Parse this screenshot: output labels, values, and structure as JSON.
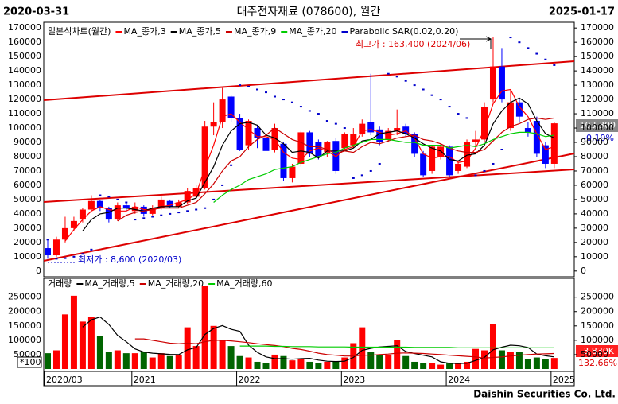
{
  "header": {
    "start": "2020-03-31",
    "title": "대주전자재료 (078600), 월간",
    "end": "2025-01-17"
  },
  "footer": "Daishin Securities Co. Ltd.",
  "chart_data": [
    {
      "type": "candlestick",
      "legend_title": "일본식차트(월간)",
      "up_color": "#ff0000",
      "down_color": "#0000ff",
      "open": [
        16000,
        11000,
        22000,
        30000,
        36000,
        43000,
        49000,
        44000,
        36000,
        46000,
        42000,
        45000,
        40000,
        44000,
        49000,
        45000,
        48000,
        52000,
        58000,
        101000,
        104000,
        122000,
        107000,
        88000,
        100000,
        93000,
        85000,
        89000,
        65000,
        75000,
        97000,
        90000,
        83000,
        91000,
        86000,
        88000,
        96000,
        104000,
        99000,
        92000,
        98000,
        101000,
        96000,
        82000,
        70000,
        80000,
        87000,
        70000,
        73000,
        90000,
        92000,
        120000,
        143000,
        100000,
        118000,
        100000,
        105000,
        88000,
        75000
      ],
      "high": [
        22000,
        24000,
        38000,
        38000,
        44000,
        53000,
        50000,
        45000,
        48000,
        48000,
        48000,
        46000,
        46000,
        52000,
        50000,
        50000,
        58000,
        60000,
        105000,
        118000,
        128000,
        123000,
        110000,
        106000,
        102000,
        96000,
        103000,
        90000,
        75000,
        98000,
        98000,
        92000,
        91000,
        93000,
        97000,
        100000,
        106000,
        138000,
        101000,
        100000,
        113000,
        103000,
        97000,
        84000,
        88000,
        89000,
        88000,
        77000,
        92000,
        98000,
        118000,
        163400,
        156000,
        127000,
        120000,
        104000,
        108000,
        90000,
        104000
      ],
      "low": [
        8600,
        10000,
        20000,
        28000,
        34000,
        42000,
        42000,
        34000,
        35000,
        42000,
        40000,
        38000,
        39000,
        43000,
        44000,
        44000,
        47000,
        51000,
        57000,
        95000,
        100000,
        104000,
        84000,
        85000,
        86000,
        80000,
        83000,
        63000,
        62000,
        73000,
        80000,
        78000,
        80000,
        68000,
        84000,
        86000,
        94000,
        95000,
        88000,
        90000,
        95000,
        94000,
        80000,
        66000,
        68000,
        78000,
        66000,
        68000,
        72000,
        86000,
        90000,
        118000,
        118000,
        98000,
        104000,
        94000,
        80000,
        72000,
        72000
      ],
      "close": [
        11000,
        22000,
        30000,
        35000,
        43000,
        49000,
        44000,
        36000,
        46000,
        44000,
        45000,
        40000,
        44000,
        50000,
        45000,
        48000,
        56000,
        58000,
        101000,
        104000,
        120000,
        107000,
        85000,
        105000,
        93000,
        84000,
        100000,
        65000,
        73000,
        97000,
        82000,
        80000,
        90000,
        70000,
        96000,
        96000,
        103000,
        97000,
        90000,
        98000,
        100000,
        96000,
        82000,
        67000,
        87000,
        87000,
        67000,
        75000,
        90000,
        92000,
        115000,
        143000,
        120000,
        118000,
        108000,
        97000,
        82000,
        75000,
        103300
      ],
      "series": [
        {
          "name": "MA_종가,3",
          "color": "#ff0000",
          "values": [
            null,
            null,
            21000,
            29000,
            36000,
            42000,
            45000,
            43000,
            42000,
            42000,
            45000,
            43000,
            43000,
            45000,
            46000,
            48000,
            50000,
            54000,
            72000,
            88000,
            108000,
            110000,
            104000,
            99000,
            94000,
            94000,
            92000,
            83000,
            79000,
            78000,
            84000,
            86000,
            84000,
            80000,
            85000,
            87000,
            98000,
            99000,
            97000,
            95000,
            96000,
            98000,
            93000,
            82000,
            79000,
            80000,
            80000,
            76000,
            77000,
            86000,
            99000,
            117000,
            126000,
            127000,
            115000,
            108000,
            96000,
            85000,
            87000
          ]
        },
        {
          "name": "MA_종가,5",
          "color": "#000000",
          "values": [
            null,
            null,
            null,
            null,
            28000,
            36000,
            40000,
            41000,
            44000,
            44000,
            43000,
            42000,
            44000,
            45000,
            45000,
            45000,
            49000,
            51000,
            62000,
            73000,
            88000,
            98000,
            103000,
            104000,
            102000,
            95000,
            93000,
            89000,
            83000,
            84000,
            83000,
            79000,
            84000,
            84000,
            84000,
            86000,
            91000,
            92000,
            96000,
            97000,
            98000,
            96000,
            93000,
            89000,
            86000,
            84000,
            78000,
            77000,
            81000,
            82000,
            88000,
            103000,
            112000,
            118000,
            121000,
            117000,
            105000,
            96000,
            93000
          ]
        },
        {
          "name": "MA_종가,9",
          "color": "#cc0000",
          "values": [
            null,
            null,
            null,
            null,
            null,
            null,
            null,
            null,
            35000,
            39000,
            41000,
            42000,
            43000,
            44000,
            44000,
            44000,
            46000,
            48000,
            54000,
            61000,
            70000,
            77000,
            80000,
            87000,
            92000,
            95000,
            100000,
            96000,
            92000,
            90000,
            87000,
            87000,
            85000,
            82000,
            84000,
            83000,
            87000,
            90000,
            89000,
            91000,
            93000,
            94000,
            95000,
            92000,
            91000,
            89000,
            86000,
            84000,
            83000,
            83000,
            85000,
            91000,
            97000,
            101000,
            103000,
            106000,
            107000,
            106000,
            107000
          ]
        },
        {
          "name": "MA_종가,20",
          "color": "#00cc00",
          "values": [
            null,
            null,
            null,
            null,
            null,
            null,
            null,
            null,
            null,
            null,
            null,
            null,
            null,
            null,
            null,
            null,
            null,
            null,
            null,
            48000,
            53000,
            57000,
            60000,
            64000,
            66000,
            68000,
            71000,
            72000,
            73000,
            76000,
            78000,
            80000,
            82000,
            83000,
            86000,
            88000,
            90000,
            92000,
            92000,
            92000,
            91000,
            90000,
            90000,
            88000,
            88000,
            88000,
            86000,
            87000,
            88000,
            87000,
            89000,
            92000,
            94000,
            96000,
            97000,
            97000,
            96000,
            94000,
            95000
          ]
        },
        {
          "name": "Parabolic SAR(0.02,0.20)",
          "color": "#0000cc",
          "type": "dots",
          "values": [
            22000,
            8600,
            9000,
            10000,
            12000,
            15000,
            53000,
            52000,
            50000,
            48000,
            36000,
            37000,
            38000,
            39000,
            40000,
            41000,
            42000,
            43000,
            44000,
            50000,
            60000,
            74000,
            130000,
            129000,
            127000,
            125000,
            122000,
            120000,
            118000,
            115000,
            112000,
            110000,
            105000,
            103000,
            100000,
            65000,
            67000,
            70000,
            75000,
            138000,
            136000,
            133000,
            130000,
            127000,
            123000,
            120000,
            115000,
            110000,
            107000,
            67000,
            70000,
            75000,
            85000,
            163400,
            160000,
            156000,
            152000,
            148000,
            144000
          ]
        }
      ],
      "ylim": [
        -4000,
        174000
      ],
      "yticks": [
        0,
        10000,
        20000,
        30000,
        40000,
        50000,
        60000,
        70000,
        80000,
        90000,
        100000,
        110000,
        120000,
        130000,
        140000,
        150000,
        160000,
        170000
      ],
      "annotations": [
        "최고가 : 163,400 (2024/06)",
        "최저가 : 8,600 (2020/03)"
      ],
      "last_price": "103,300",
      "change": "-0.19%"
    },
    {
      "type": "bar",
      "legend_title": "거래량",
      "up_color": "#ff0000",
      "down_color": "#006400",
      "categories": [
        "2020/03",
        null,
        null,
        null,
        null,
        null,
        null,
        null,
        null,
        null,
        "2021",
        null,
        null,
        null,
        null,
        null,
        null,
        null,
        null,
        null,
        null,
        null,
        "2022",
        null,
        null,
        null,
        null,
        null,
        null,
        null,
        null,
        null,
        null,
        null,
        "2023",
        null,
        null,
        null,
        null,
        null,
        null,
        null,
        null,
        null,
        null,
        null,
        "2024",
        null,
        null,
        null,
        null,
        null,
        null,
        null,
        null,
        null,
        null,
        null,
        "2025"
      ],
      "values": [
        55000,
        65000,
        190000,
        255000,
        165000,
        180000,
        115000,
        60000,
        65000,
        55000,
        55000,
        60000,
        40000,
        55000,
        45000,
        50000,
        145000,
        80000,
        288000,
        150000,
        100000,
        80000,
        45000,
        40000,
        25000,
        20000,
        50000,
        45000,
        30000,
        35000,
        25000,
        20000,
        25000,
        25000,
        40000,
        90000,
        145000,
        60000,
        50000,
        50000,
        100000,
        45000,
        25000,
        20000,
        20000,
        15000,
        20000,
        20000,
        25000,
        70000,
        65000,
        155000,
        65000,
        60000,
        60000,
        35000,
        40000,
        35000,
        38300
      ],
      "series": [
        {
          "name": "MA_거래량,5",
          "color": "#000000",
          "values": [
            null,
            null,
            null,
            null,
            146000,
            171000,
            181000,
            155000,
            117000,
            95000,
            70000,
            59000,
            55000,
            53000,
            51000,
            50000,
            67000,
            75000,
            120000,
            141000,
            151000,
            138000,
            131000,
            83000,
            58000,
            42000,
            36000,
            36000,
            34000,
            36000,
            37000,
            31000,
            27000,
            26000,
            27000,
            40000,
            65000,
            72000,
            77000,
            79000,
            81000,
            61000,
            54000,
            48000,
            42000,
            25000,
            20000,
            19000,
            20000,
            30000,
            40000,
            67000,
            76000,
            83000,
            81000,
            75000,
            52000,
            46000,
            42000
          ]
        },
        {
          "name": "MA_거래량,20",
          "color": "#cc0000",
          "values": [
            null,
            null,
            null,
            null,
            null,
            null,
            null,
            null,
            null,
            null,
            105000,
            105000,
            100000,
            95000,
            90000,
            88000,
            90000,
            88000,
            95000,
            100000,
            100000,
            98000,
            95000,
            92000,
            88000,
            85000,
            82000,
            78000,
            72000,
            68000,
            62000,
            55000,
            50000,
            48000,
            45000,
            45000,
            48000,
            48000,
            50000,
            52000,
            55000,
            56000,
            55000,
            54000,
            52000,
            50000,
            48000,
            46000,
            44000,
            42000,
            38000,
            40000,
            42000,
            45000,
            48000,
            50000,
            52000,
            53000,
            54000
          ]
        },
        {
          "name": "MA_거래량,60",
          "color": "#00cc00",
          "values": [
            null,
            null,
            null,
            null,
            null,
            null,
            null,
            null,
            null,
            null,
            null,
            null,
            null,
            null,
            null,
            null,
            null,
            null,
            null,
            null,
            null,
            null,
            80000,
            80000,
            80000,
            80000,
            79000,
            79000,
            78000,
            78000,
            78000,
            77000,
            77000,
            77000,
            77000,
            76000,
            76000,
            76000,
            76000,
            76000,
            76000,
            76000,
            75000,
            75000,
            75000,
            75000,
            75000,
            74000,
            74000,
            74000,
            74000,
            74000,
            74000,
            74000,
            74000,
            74000,
            74000,
            74000,
            74000
          ]
        }
      ],
      "ylim": [
        0,
        310000
      ],
      "yticks": [
        50000,
        100000,
        150000,
        200000,
        250000
      ],
      "unit_label": "*100",
      "last_value": "3,830K",
      "change": "132.66%"
    }
  ]
}
